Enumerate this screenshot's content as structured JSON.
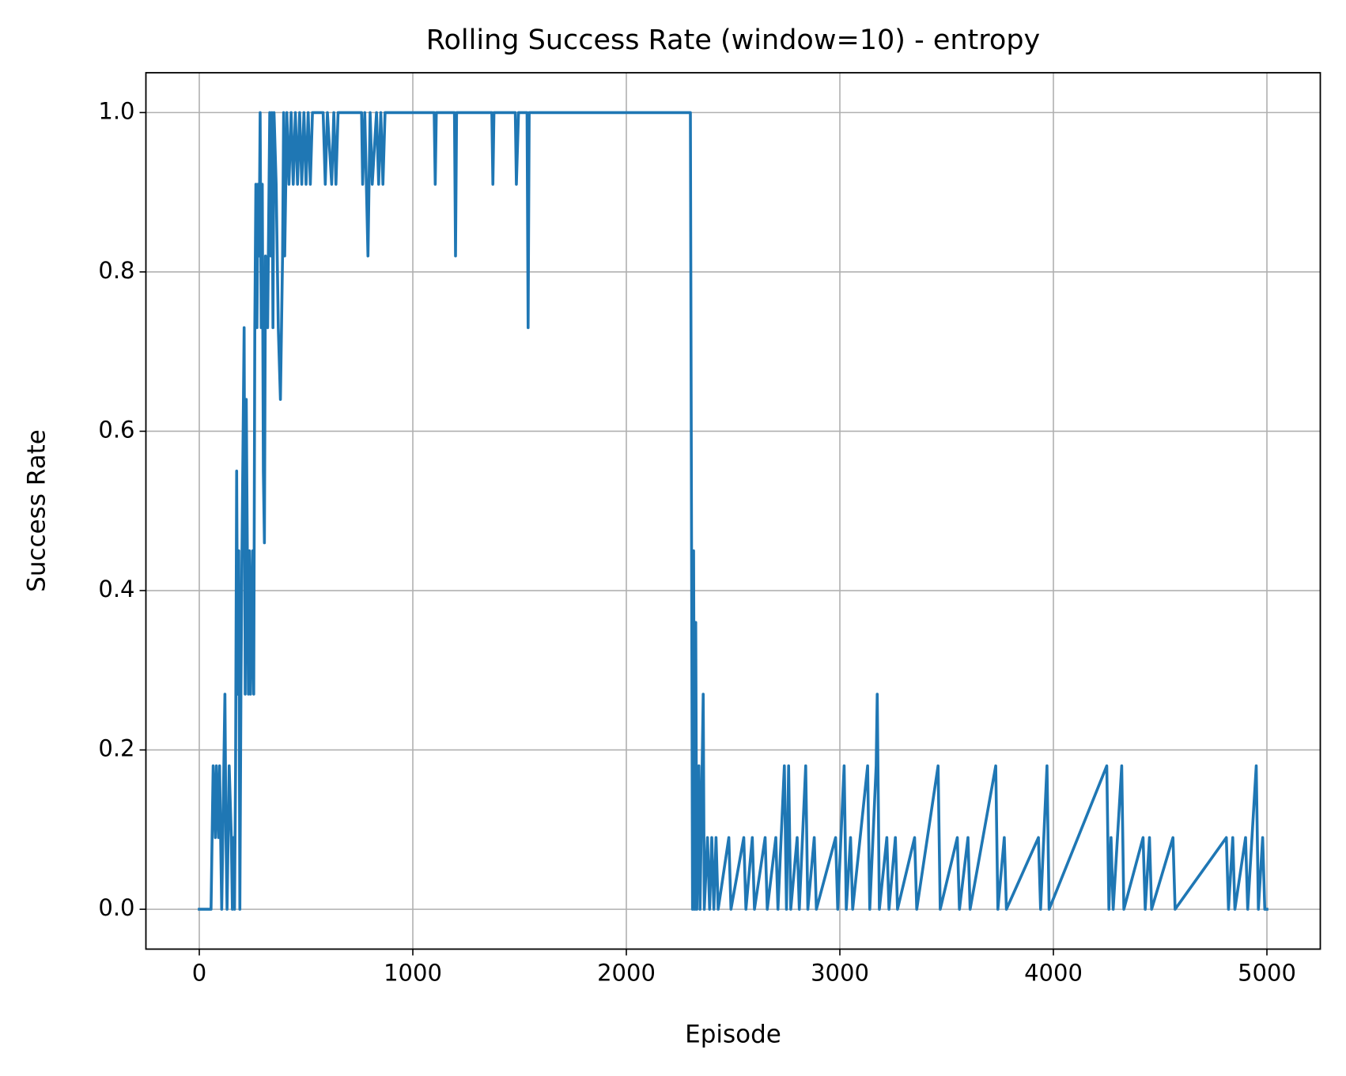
{
  "chart_data": {
    "type": "line",
    "title": "Rolling Success Rate (window=10) - entropy",
    "xlabel": "Episode",
    "ylabel": "Success Rate",
    "xlim": [
      -250,
      5250
    ],
    "ylim": [
      -0.05,
      1.05
    ],
    "xticks": [
      0,
      1000,
      2000,
      3000,
      4000,
      5000
    ],
    "yticks": [
      {
        "value": 0,
        "label": "0.0"
      },
      0.2,
      0.4,
      0.6,
      0.8,
      {
        "value": 1,
        "label": "1.0"
      }
    ],
    "grid": true,
    "series": [
      {
        "color": "#1f77b4",
        "x": [
          0,
          55,
          60,
          65,
          75,
          80,
          90,
          95,
          100,
          105,
          110,
          120,
          125,
          130,
          135,
          140,
          150,
          155,
          160,
          165,
          170,
          175,
          180,
          185,
          190,
          195,
          200,
          210,
          215,
          220,
          225,
          230,
          235,
          240,
          250,
          255,
          260,
          265,
          270,
          275,
          280,
          285,
          290,
          295,
          300,
          305,
          310,
          320,
          330,
          335,
          340,
          345,
          350,
          360,
          370,
          380,
          390,
          395,
          400,
          410,
          420,
          430,
          440,
          450,
          460,
          470,
          480,
          490,
          500,
          510,
          520,
          530,
          580,
          590,
          600,
          620,
          630,
          640,
          650,
          760,
          765,
          775,
          790,
          800,
          810,
          830,
          840,
          850,
          860,
          870,
          1100,
          1105,
          1110,
          1195,
          1200,
          1205,
          1370,
          1375,
          1380,
          1480,
          1485,
          1495,
          1535,
          1540,
          1545,
          2300,
          2310,
          2315,
          2320,
          2325,
          2330,
          2340,
          2345,
          2360,
          2365,
          2380,
          2390,
          2400,
          2410,
          2420,
          2430,
          2480,
          2490,
          2550,
          2560,
          2590,
          2600,
          2650,
          2660,
          2700,
          2710,
          2740,
          2750,
          2760,
          2770,
          2800,
          2810,
          2840,
          2850,
          2880,
          2890,
          2980,
          2990,
          3020,
          3030,
          3050,
          3060,
          3130,
          3140,
          3170,
          3175,
          3185,
          3220,
          3230,
          3260,
          3270,
          3350,
          3360,
          3460,
          3470,
          3550,
          3560,
          3600,
          3610,
          3730,
          3740,
          3770,
          3780,
          3930,
          3940,
          3970,
          3980,
          4250,
          4260,
          4270,
          4280,
          4320,
          4330,
          4420,
          4430,
          4450,
          4460,
          4560,
          4570,
          4810,
          4820,
          4840,
          4850,
          4900,
          4910,
          4950,
          4960,
          4980,
          4990,
          5000
        ],
        "values": [
          0,
          0,
          0.09,
          0.18,
          0.09,
          0.18,
          0.09,
          0.18,
          0.09,
          0,
          0.09,
          0.27,
          0.09,
          0,
          0.09,
          0.18,
          0.09,
          0,
          0.09,
          0,
          0.18,
          0.55,
          0.27,
          0.45,
          0,
          0.27,
          0.45,
          0.73,
          0.27,
          0.64,
          0.45,
          0.27,
          0.45,
          0.27,
          0.45,
          0.27,
          0.73,
          0.91,
          0.73,
          0.91,
          0.82,
          1.0,
          0.73,
          0.91,
          0.55,
          0.46,
          0.82,
          0.73,
          1.0,
          0.82,
          1.0,
          0.73,
          1.0,
          0.91,
          0.73,
          0.64,
          0.82,
          1.0,
          0.82,
          1.0,
          0.91,
          1.0,
          0.91,
          1.0,
          0.91,
          1.0,
          0.91,
          1.0,
          0.91,
          1.0,
          0.91,
          1.0,
          1.0,
          0.91,
          1.0,
          0.91,
          1.0,
          0.91,
          1.0,
          1.0,
          0.91,
          1.0,
          0.82,
          1.0,
          0.91,
          1.0,
          0.91,
          1.0,
          0.91,
          1.0,
          1.0,
          0.91,
          1.0,
          1.0,
          0.82,
          1.0,
          1.0,
          0.91,
          1.0,
          1.0,
          0.91,
          1.0,
          1.0,
          0.73,
          1.0,
          1.0,
          0,
          0.45,
          0,
          0.36,
          0,
          0.18,
          0,
          0.27,
          0,
          0.09,
          0,
          0.09,
          0,
          0.09,
          0,
          0.09,
          0,
          0.09,
          0,
          0.09,
          0,
          0.09,
          0,
          0.09,
          0,
          0.18,
          0,
          0.18,
          0,
          0.09,
          0,
          0.18,
          0,
          0.09,
          0,
          0.09,
          0,
          0.18,
          0,
          0.09,
          0,
          0.18,
          0,
          0.18,
          0.27,
          0,
          0.09,
          0,
          0.09,
          0,
          0.09,
          0,
          0.18,
          0,
          0.09,
          0,
          0.09,
          0,
          0.18,
          0,
          0.09,
          0,
          0.09,
          0,
          0.18,
          0,
          0.18,
          0,
          0.09,
          0,
          0.18,
          0,
          0.09,
          0,
          0.09,
          0,
          0.09,
          0,
          0.09,
          0,
          0.09,
          0,
          0.09,
          0,
          0.18,
          0,
          0.09,
          0,
          0
        ]
      }
    ]
  }
}
